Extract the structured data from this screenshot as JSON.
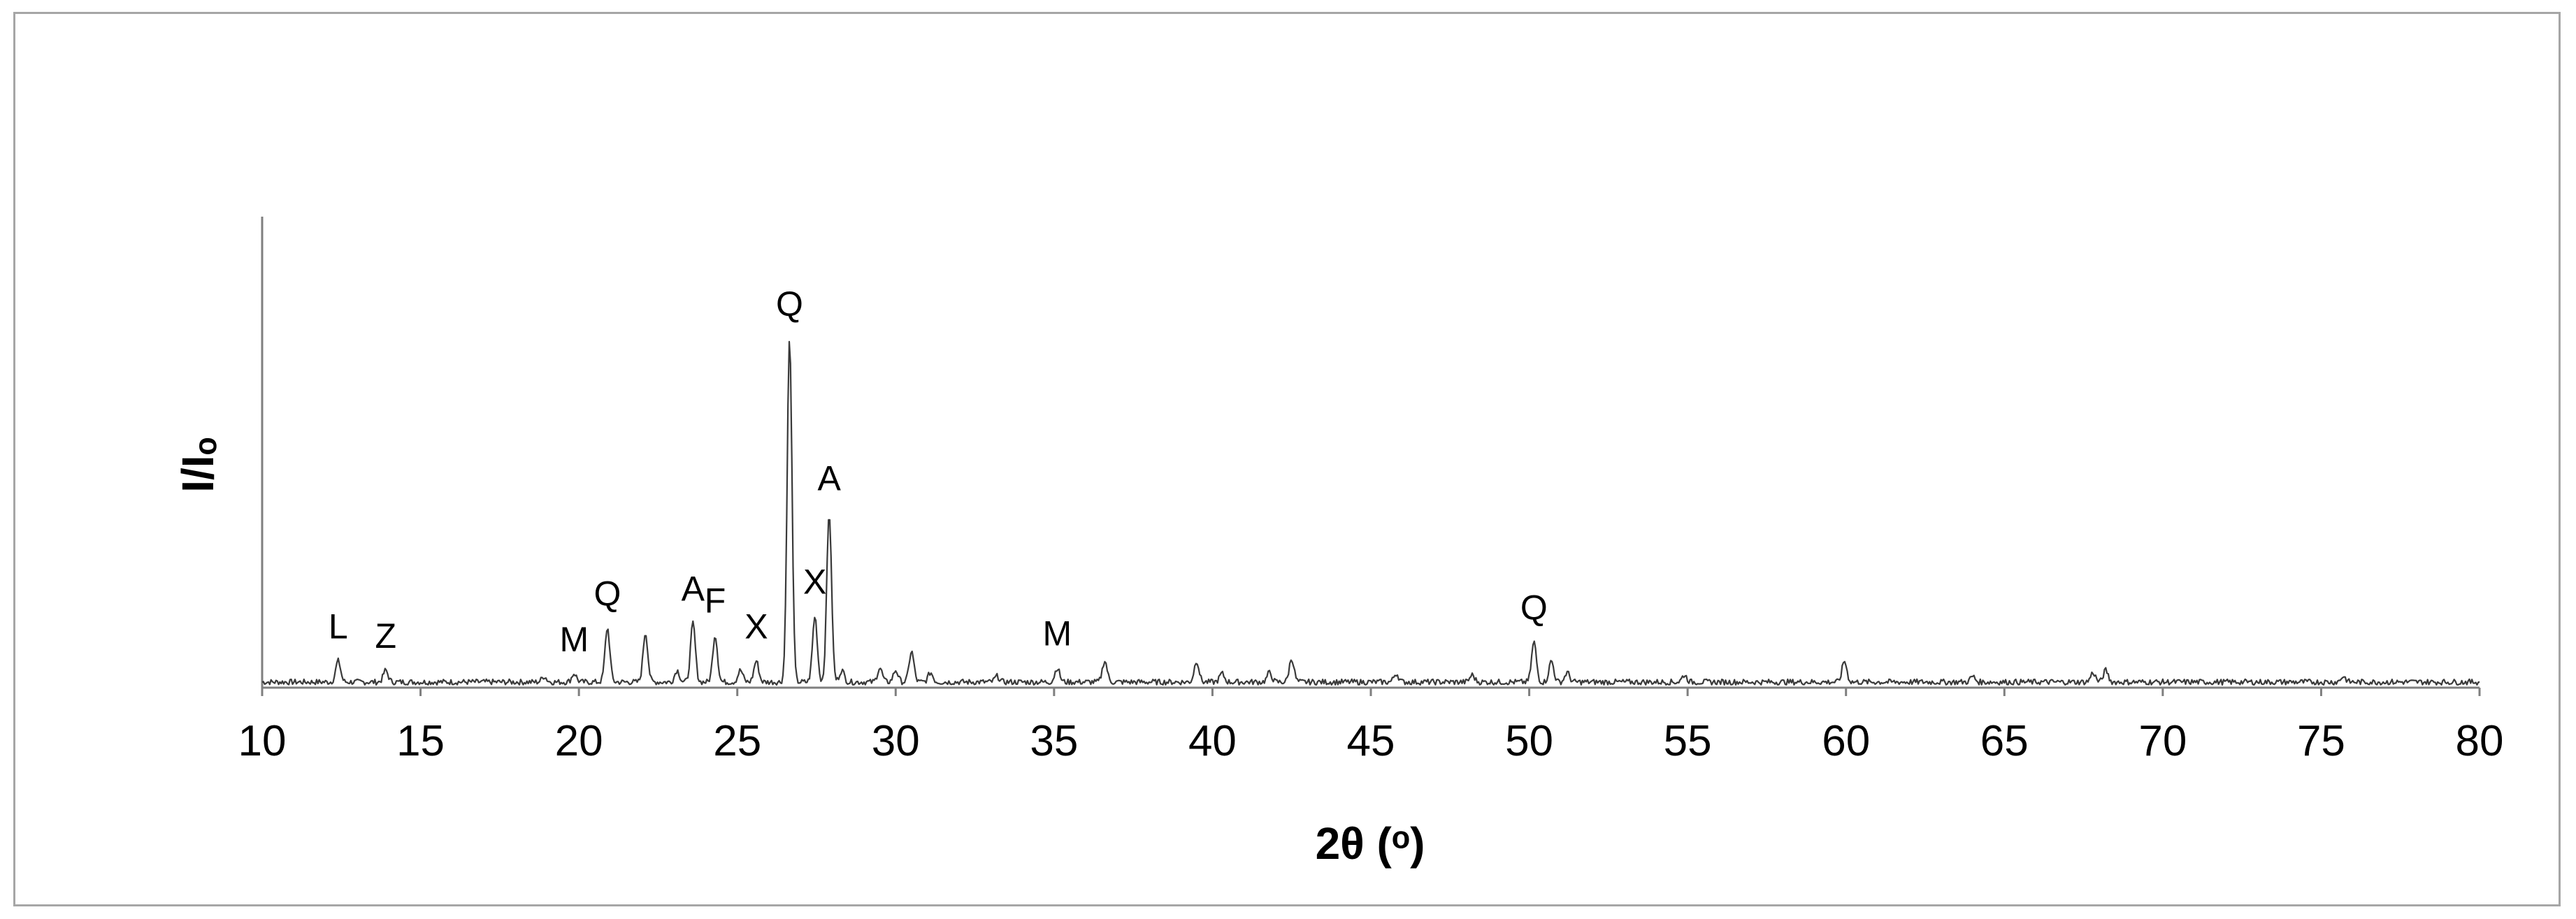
{
  "chart_data": {
    "type": "line",
    "title": "",
    "xlabel": "2θ (ᵒ)",
    "ylabel": "I/Iₒ",
    "xlim": [
      10,
      80
    ],
    "ylim": [
      0,
      1.0
    ],
    "grid": false,
    "x_ticks": [
      10,
      15,
      20,
      25,
      30,
      35,
      40,
      45,
      50,
      55,
      60,
      65,
      70,
      75,
      80
    ],
    "x_tick_labels": [
      "10",
      "15",
      "20",
      "25",
      "30",
      "35",
      "40",
      "45",
      "50",
      "55",
      "60",
      "65",
      "70",
      "75",
      "80"
    ],
    "colors": {
      "line": "#3a3a3a",
      "axis": "#7f7f7f",
      "frame": "#a6a6a6"
    },
    "series": [
      {
        "peaks": [
          [
            12.4,
            0.045
          ],
          [
            13.9,
            0.025
          ],
          [
            18.9,
            0.012
          ],
          [
            19.85,
            0.018
          ],
          [
            20.9,
            0.115
          ],
          [
            22.1,
            0.105
          ],
          [
            23.1,
            0.025
          ],
          [
            23.6,
            0.125
          ],
          [
            24.3,
            0.1
          ],
          [
            25.1,
            0.025
          ],
          [
            25.6,
            0.045
          ],
          [
            26.65,
            0.73
          ],
          [
            27.45,
            0.14
          ],
          [
            27.9,
            0.36
          ],
          [
            28.3,
            0.025
          ],
          [
            29.5,
            0.03
          ],
          [
            30.0,
            0.025
          ],
          [
            30.5,
            0.065
          ],
          [
            31.1,
            0.02
          ],
          [
            33.2,
            0.012
          ],
          [
            35.1,
            0.03
          ],
          [
            36.6,
            0.045
          ],
          [
            39.5,
            0.045
          ],
          [
            40.3,
            0.018
          ],
          [
            41.8,
            0.02
          ],
          [
            42.5,
            0.05
          ],
          [
            45.8,
            0.018
          ],
          [
            48.2,
            0.015
          ],
          [
            50.15,
            0.085
          ],
          [
            50.7,
            0.045
          ],
          [
            51.2,
            0.02
          ],
          [
            54.9,
            0.015
          ],
          [
            59.95,
            0.045
          ],
          [
            64.0,
            0.012
          ],
          [
            67.8,
            0.02
          ],
          [
            68.2,
            0.025
          ],
          [
            75.7,
            0.012
          ]
        ],
        "baseline": 0.012
      }
    ],
    "annotations": [
      {
        "text": "L",
        "x": 12.4
      },
      {
        "text": "Z",
        "x": 13.9
      },
      {
        "text": "M",
        "x": 19.85
      },
      {
        "text": "Q",
        "x": 20.9
      },
      {
        "text": "A",
        "x": 23.6
      },
      {
        "text": "F",
        "x": 24.3
      },
      {
        "text": "X",
        "x": 25.6
      },
      {
        "text": "Q",
        "x": 26.65
      },
      {
        "text": "X",
        "x": 27.45
      },
      {
        "text": "A",
        "x": 27.9
      },
      {
        "text": "M",
        "x": 35.1
      },
      {
        "text": "Q",
        "x": 50.15
      }
    ]
  }
}
